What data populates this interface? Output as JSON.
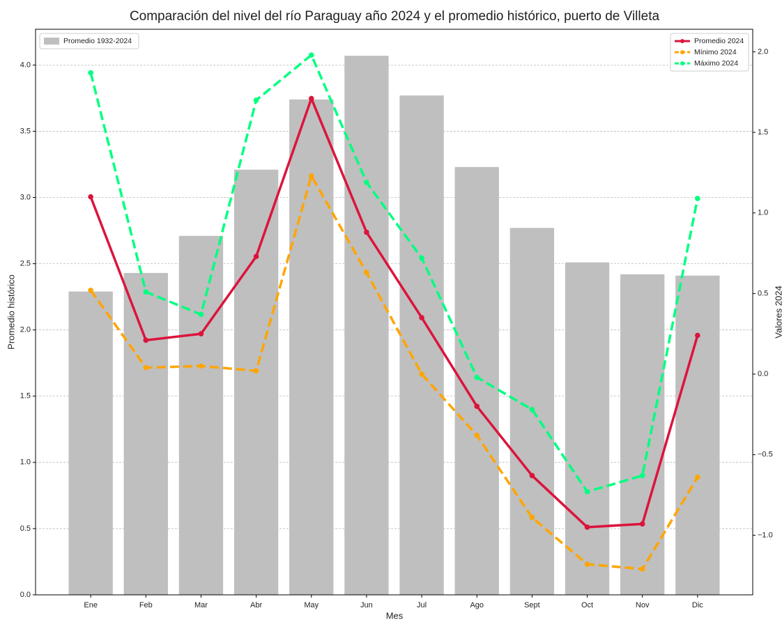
{
  "chart_data": {
    "type": "bar_line",
    "title": "Comparación del nivel del río Paraguay año 2024 y el promedio histórico, puerto de Villeta",
    "xlabel": "Mes",
    "ylabel": "Promedio histórico",
    "y2label": "Valores 2024",
    "categories": [
      "Ene",
      "Feb",
      "Mar",
      "Abr",
      "May",
      "Jun",
      "Jul",
      "Ago",
      "Sept",
      "Oct",
      "Nov",
      "Dic"
    ],
    "series": [
      {
        "name": "Promedio 1932-2024",
        "type": "bar",
        "axis": "y",
        "color": "#bfbfbf",
        "values": [
          2.29,
          2.43,
          2.71,
          3.21,
          3.74,
          4.07,
          3.77,
          3.23,
          2.77,
          2.51,
          2.42,
          2.41
        ]
      },
      {
        "name": "Promedio 2024",
        "type": "line",
        "axis": "y2",
        "color": "#dc143c",
        "linestyle": "solid",
        "values": [
          1.1,
          0.21,
          0.25,
          0.73,
          1.71,
          0.88,
          0.35,
          -0.2,
          -0.63,
          -0.95,
          -0.93,
          0.24
        ]
      },
      {
        "name": "Mínimo 2024",
        "type": "line",
        "axis": "y2",
        "color": "#ffa500",
        "linestyle": "dashed",
        "values": [
          0.52,
          0.04,
          0.05,
          0.02,
          1.23,
          0.63,
          0.0,
          -0.38,
          -0.89,
          -1.18,
          -1.21,
          -0.64
        ]
      },
      {
        "name": "Máximo 2024",
        "type": "line",
        "axis": "y2",
        "color": "#00ff7f",
        "linestyle": "dashed",
        "values": [
          1.87,
          0.51,
          0.37,
          1.7,
          1.98,
          1.19,
          0.72,
          -0.02,
          -0.22,
          -0.73,
          -0.63,
          1.09
        ]
      }
    ],
    "ylim": [
      0,
      4.27
    ],
    "yticks": [
      {
        "value": 0,
        "label": "0.0"
      },
      0.5,
      {
        "value": 1,
        "label": "1.0"
      },
      1.5,
      {
        "value": 2,
        "label": "2.0"
      },
      2.5,
      {
        "value": 3,
        "label": "3.0"
      },
      3.5,
      {
        "value": 4,
        "label": "4.0"
      }
    ],
    "y2lim": [
      -1.37,
      2.14
    ],
    "y2ticks": [
      {
        "value": -1,
        "label": "−1.0"
      },
      {
        "value": -0.5,
        "label": "−0.5"
      },
      {
        "value": 0,
        "label": "0.0"
      },
      0.5,
      {
        "value": 1,
        "label": "1.0"
      },
      1.5,
      {
        "value": 2,
        "label": "2.0"
      }
    ],
    "grid": true,
    "legend_loc": {
      "y": "upper left",
      "y2": "upper right"
    }
  }
}
